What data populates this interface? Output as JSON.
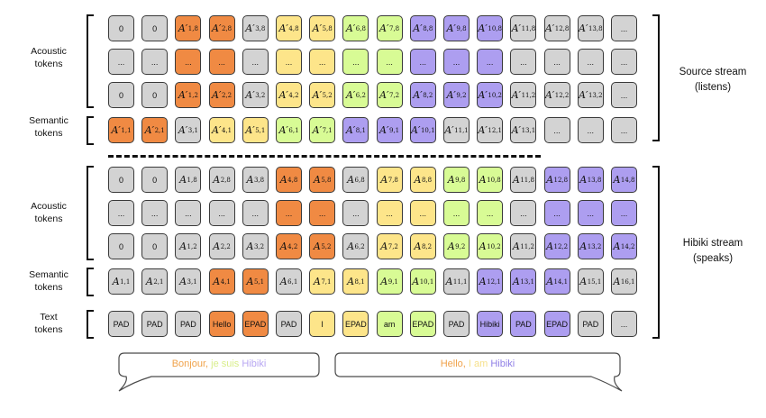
{
  "colors": {
    "gray": "#d3d3d3",
    "orange": "#f08a43",
    "yellow": "#fde58a",
    "green": "#d8fb95",
    "purple": "#ad9ef0",
    "border": "#3a3a3a"
  },
  "labels": {
    "source_acoustic": [
      "Acoustic",
      "tokens"
    ],
    "source_semantic": [
      "Semantic",
      "tokens"
    ],
    "target_acoustic": [
      "Acoustic",
      "tokens"
    ],
    "target_semantic": [
      "Semantic",
      "tokens"
    ],
    "target_text": [
      "Text",
      "tokens"
    ],
    "source_stream": [
      "Source stream",
      "(listens)"
    ],
    "target_stream": [
      "Hibiki stream",
      "(speaks)"
    ]
  },
  "source_stream": {
    "acoustic_rows": [
      [
        {
          "t": "0",
          "c": "gray"
        },
        {
          "t": "0",
          "c": "gray"
        },
        {
          "b": "A",
          "p": true,
          "s": "1,8",
          "c": "orange"
        },
        {
          "b": "A",
          "p": true,
          "s": "2,8",
          "c": "orange"
        },
        {
          "b": "A",
          "p": true,
          "s": "3,8",
          "c": "gray"
        },
        {
          "b": "A",
          "p": true,
          "s": "4,8",
          "c": "yellow"
        },
        {
          "b": "A",
          "p": true,
          "s": "5,8",
          "c": "yellow"
        },
        {
          "b": "A",
          "p": true,
          "s": "6,8",
          "c": "green"
        },
        {
          "b": "A",
          "p": true,
          "s": "7,8",
          "c": "green"
        },
        {
          "b": "A",
          "p": true,
          "s": "8,8",
          "c": "purple"
        },
        {
          "b": "A",
          "p": true,
          "s": "9,8",
          "c": "purple"
        },
        {
          "b": "A",
          "p": true,
          "s": "10,8",
          "c": "purple"
        },
        {
          "b": "A",
          "p": true,
          "s": "11,8",
          "c": "gray"
        },
        {
          "b": "A",
          "p": true,
          "s": "12,8",
          "c": "gray"
        },
        {
          "b": "A",
          "p": true,
          "s": "13,8",
          "c": "gray"
        },
        {
          "t": "...",
          "c": "gray"
        }
      ],
      [
        {
          "t": "...",
          "c": "gray"
        },
        {
          "t": "...",
          "c": "gray"
        },
        {
          "t": "...",
          "c": "orange"
        },
        {
          "t": "...",
          "c": "orange"
        },
        {
          "t": "...",
          "c": "gray"
        },
        {
          "t": "...",
          "c": "yellow"
        },
        {
          "t": "...",
          "c": "yellow"
        },
        {
          "t": "...",
          "c": "green"
        },
        {
          "t": "...",
          "c": "green"
        },
        {
          "t": "...",
          "c": "purple"
        },
        {
          "t": "...",
          "c": "purple"
        },
        {
          "t": "...",
          "c": "purple"
        },
        {
          "t": "...",
          "c": "gray"
        },
        {
          "t": "...",
          "c": "gray"
        },
        {
          "t": "...",
          "c": "gray"
        },
        {
          "t": "...",
          "c": "gray"
        }
      ],
      [
        {
          "t": "0",
          "c": "gray"
        },
        {
          "t": "0",
          "c": "gray"
        },
        {
          "b": "A",
          "p": true,
          "s": "1,2",
          "c": "orange"
        },
        {
          "b": "A",
          "p": true,
          "s": "2,2",
          "c": "orange"
        },
        {
          "b": "A",
          "p": true,
          "s": "3,2",
          "c": "gray"
        },
        {
          "b": "A",
          "p": true,
          "s": "4,2",
          "c": "yellow"
        },
        {
          "b": "A",
          "p": true,
          "s": "5,2",
          "c": "yellow"
        },
        {
          "b": "A",
          "p": true,
          "s": "6,2",
          "c": "green"
        },
        {
          "b": "A",
          "p": true,
          "s": "7,2",
          "c": "green"
        },
        {
          "b": "A",
          "p": true,
          "s": "8,2",
          "c": "purple"
        },
        {
          "b": "A",
          "p": true,
          "s": "9,2",
          "c": "purple"
        },
        {
          "b": "A",
          "p": true,
          "s": "10,2",
          "c": "purple"
        },
        {
          "b": "A",
          "p": true,
          "s": "11,2",
          "c": "gray"
        },
        {
          "b": "A",
          "p": true,
          "s": "12,2",
          "c": "gray"
        },
        {
          "b": "A",
          "p": true,
          "s": "13,2",
          "c": "gray"
        },
        {
          "t": "...",
          "c": "gray"
        }
      ]
    ],
    "semantic_row": [
      {
        "b": "A",
        "p": true,
        "s": "1,1",
        "c": "orange"
      },
      {
        "b": "A",
        "p": true,
        "s": "2,1",
        "c": "orange"
      },
      {
        "b": "A",
        "p": true,
        "s": "3,1",
        "c": "gray"
      },
      {
        "b": "A",
        "p": true,
        "s": "4,1",
        "c": "yellow"
      },
      {
        "b": "A",
        "p": true,
        "s": "5,1",
        "c": "yellow"
      },
      {
        "b": "A",
        "p": true,
        "s": "6,1",
        "c": "green"
      },
      {
        "b": "A",
        "p": true,
        "s": "7,1",
        "c": "green"
      },
      {
        "b": "A",
        "p": true,
        "s": "8,1",
        "c": "purple"
      },
      {
        "b": "A",
        "p": true,
        "s": "9,1",
        "c": "purple"
      },
      {
        "b": "A",
        "p": true,
        "s": "10,1",
        "c": "purple"
      },
      {
        "b": "A",
        "p": true,
        "s": "11,1",
        "c": "gray"
      },
      {
        "b": "A",
        "p": true,
        "s": "12,1",
        "c": "gray"
      },
      {
        "b": "A",
        "p": true,
        "s": "13,1",
        "c": "gray"
      },
      {
        "t": "...",
        "c": "gray"
      },
      {
        "t": "...",
        "c": "gray"
      },
      {
        "t": "...",
        "c": "gray"
      }
    ]
  },
  "target_stream": {
    "acoustic_rows": [
      [
        {
          "t": "0",
          "c": "gray"
        },
        {
          "t": "0",
          "c": "gray"
        },
        {
          "b": "A",
          "s": "1,8",
          "c": "gray"
        },
        {
          "b": "A",
          "s": "2,8",
          "c": "gray"
        },
        {
          "b": "A",
          "s": "3,8",
          "c": "gray"
        },
        {
          "b": "A",
          "s": "4,8",
          "c": "orange"
        },
        {
          "b": "A",
          "s": "5,8",
          "c": "orange"
        },
        {
          "b": "A",
          "s": "6,8",
          "c": "gray"
        },
        {
          "b": "A",
          "s": "7,8",
          "c": "yellow"
        },
        {
          "b": "A",
          "s": "8,8",
          "c": "yellow"
        },
        {
          "b": "A",
          "s": "9,8",
          "c": "green"
        },
        {
          "b": "A",
          "s": "10,8",
          "c": "green"
        },
        {
          "b": "A",
          "s": "11,8",
          "c": "gray"
        },
        {
          "b": "A",
          "s": "12,8",
          "c": "purple"
        },
        {
          "b": "A",
          "s": "13,8",
          "c": "purple"
        },
        {
          "b": "A",
          "s": "14,8",
          "c": "purple"
        }
      ],
      [
        {
          "t": "...",
          "c": "gray"
        },
        {
          "t": "...",
          "c": "gray"
        },
        {
          "t": "...",
          "c": "gray"
        },
        {
          "t": "...",
          "c": "gray"
        },
        {
          "t": "...",
          "c": "gray"
        },
        {
          "t": "...",
          "c": "orange"
        },
        {
          "t": "...",
          "c": "orange"
        },
        {
          "t": "...",
          "c": "gray"
        },
        {
          "t": "...",
          "c": "yellow"
        },
        {
          "t": "...",
          "c": "yellow"
        },
        {
          "t": "...",
          "c": "green"
        },
        {
          "t": "...",
          "c": "green"
        },
        {
          "t": "...",
          "c": "gray"
        },
        {
          "t": "...",
          "c": "purple"
        },
        {
          "t": "...",
          "c": "purple"
        },
        {
          "t": "...",
          "c": "purple"
        }
      ],
      [
        {
          "t": "0",
          "c": "gray"
        },
        {
          "t": "0",
          "c": "gray"
        },
        {
          "b": "A",
          "s": "1,2",
          "c": "gray"
        },
        {
          "b": "A",
          "s": "2,2",
          "c": "gray"
        },
        {
          "b": "A",
          "s": "3,2",
          "c": "gray"
        },
        {
          "b": "A",
          "s": "4,2",
          "c": "orange"
        },
        {
          "b": "A",
          "s": "5,2",
          "c": "orange"
        },
        {
          "b": "A",
          "s": "6,2",
          "c": "gray"
        },
        {
          "b": "A",
          "s": "7,2",
          "c": "yellow"
        },
        {
          "b": "A",
          "s": "8,2",
          "c": "yellow"
        },
        {
          "b": "A",
          "s": "9,2",
          "c": "green"
        },
        {
          "b": "A",
          "s": "10,2",
          "c": "green"
        },
        {
          "b": "A",
          "s": "11,2",
          "c": "gray"
        },
        {
          "b": "A",
          "s": "12,2",
          "c": "purple"
        },
        {
          "b": "A",
          "s": "13,2",
          "c": "purple"
        },
        {
          "b": "A",
          "s": "14,2",
          "c": "purple"
        }
      ]
    ],
    "semantic_row": [
      {
        "b": "A",
        "s": "1,1",
        "c": "gray"
      },
      {
        "b": "A",
        "s": "2,1",
        "c": "gray"
      },
      {
        "b": "A",
        "s": "3,1",
        "c": "gray"
      },
      {
        "b": "A",
        "s": "4,1",
        "c": "orange"
      },
      {
        "b": "A",
        "s": "5,1",
        "c": "orange"
      },
      {
        "b": "A",
        "s": "6,1",
        "c": "gray"
      },
      {
        "b": "A",
        "s": "7,1",
        "c": "yellow"
      },
      {
        "b": "A",
        "s": "8,1",
        "c": "yellow"
      },
      {
        "b": "A",
        "s": "9,1",
        "c": "green"
      },
      {
        "b": "A",
        "s": "10,1",
        "c": "green"
      },
      {
        "b": "A",
        "s": "11,1",
        "c": "gray"
      },
      {
        "b": "A",
        "s": "12,1",
        "c": "purple"
      },
      {
        "b": "A",
        "s": "13,1",
        "c": "purple"
      },
      {
        "b": "A",
        "s": "14,1",
        "c": "purple"
      },
      {
        "b": "A",
        "s": "15,1",
        "c": "gray"
      },
      {
        "b": "A",
        "s": "16,1",
        "c": "gray"
      }
    ],
    "text_row": [
      {
        "t": "PAD",
        "c": "gray"
      },
      {
        "t": "PAD",
        "c": "gray"
      },
      {
        "t": "PAD",
        "c": "gray"
      },
      {
        "t": "Hello",
        "c": "orange"
      },
      {
        "t": "EPAD",
        "c": "orange"
      },
      {
        "t": "PAD",
        "c": "gray"
      },
      {
        "t": "I",
        "c": "yellow"
      },
      {
        "t": "EPAD",
        "c": "yellow"
      },
      {
        "t": "am",
        "c": "green"
      },
      {
        "t": "EPAD",
        "c": "green"
      },
      {
        "t": "PAD",
        "c": "gray"
      },
      {
        "t": "Hibiki",
        "c": "purple"
      },
      {
        "t": "PAD",
        "c": "purple"
      },
      {
        "t": "EPAD",
        "c": "purple"
      },
      {
        "t": "PAD",
        "c": "gray"
      },
      {
        "t": "...",
        "c": "gray"
      }
    ]
  },
  "bubbles": {
    "source": [
      {
        "text": "Bonjour, ",
        "color": "#f0a24a"
      },
      {
        "text": "je suis ",
        "color": "#d9ee8a"
      },
      {
        "text": "Hibiki",
        "color": "#b7a6f2"
      }
    ],
    "target": [
      {
        "text": "Hello, ",
        "color": "#f0a24a"
      },
      {
        "text": "I am ",
        "color": "#f6e08a"
      },
      {
        "text": "Hibiki",
        "color": "#8f7fe6"
      }
    ]
  }
}
